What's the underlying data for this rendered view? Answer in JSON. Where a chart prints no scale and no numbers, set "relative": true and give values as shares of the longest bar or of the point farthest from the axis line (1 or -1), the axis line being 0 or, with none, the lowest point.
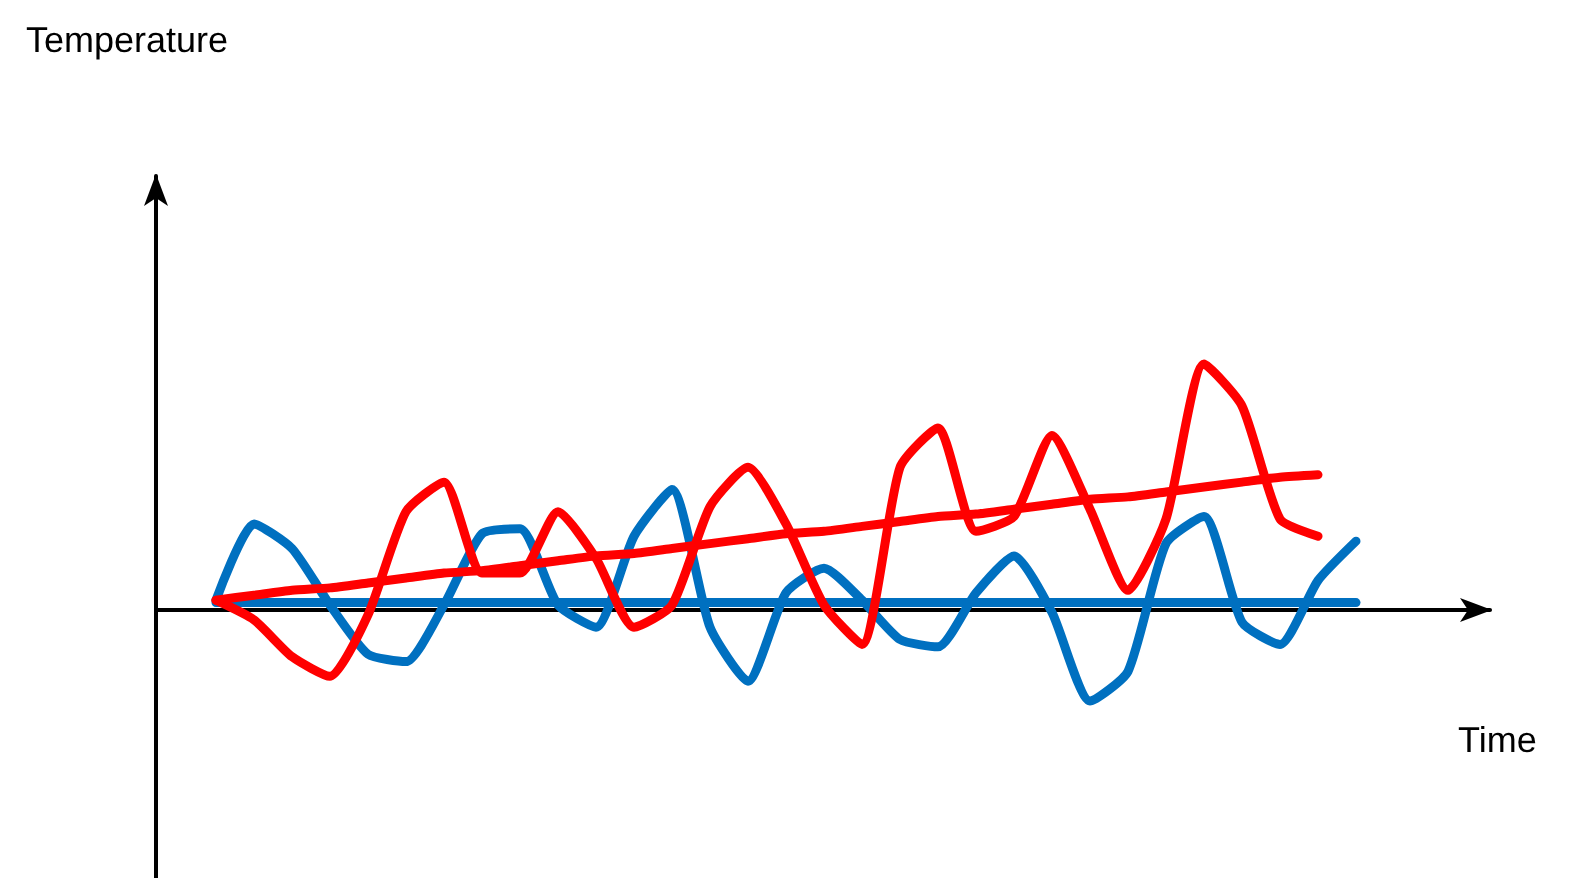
{
  "chart_data": {
    "type": "line",
    "relative": true,
    "xlabel": "Time",
    "annotations": [
      "Temperature"
    ],
    "marker": "none",
    "line_style": "solid",
    "categories": [
      null,
      null,
      null,
      null,
      null,
      null,
      null,
      null,
      null,
      null,
      null,
      null,
      null,
      null,
      null,
      null,
      null,
      null,
      null,
      null,
      null,
      null,
      null,
      null,
      null,
      null,
      null,
      null,
      null,
      null,
      null
    ],
    "series": [
      {
        "color": "#0070c0",
        "values": [
          0.03,
          0.03,
          0.03,
          0.03,
          0.03,
          0.03,
          0.03,
          0.03,
          0.03,
          0.03,
          0.03,
          0.03,
          0.03,
          0.03,
          0.03,
          0.03,
          0.03,
          0.03,
          0.03,
          0.03,
          0.03,
          0.03,
          0.03,
          0.03,
          0.03,
          0.03,
          0.03,
          0.03,
          0.03,
          0.03,
          0.03
        ]
      },
      {
        "color": "#0070c0",
        "values": [
          0.04,
          0.35,
          0.25,
          0.02,
          -0.18,
          -0.21,
          0.02,
          0.31,
          0.33,
          0.02,
          -0.07,
          0.3,
          0.49,
          -0.07,
          -0.29,
          0.07,
          0.17,
          0.04,
          -0.12,
          -0.15,
          0.07,
          0.22,
          -0.01,
          -0.37,
          -0.25,
          0.27,
          0.38,
          -0.05,
          -0.14,
          0.12,
          0.28
        ]
      },
      {
        "color": "#ff0000",
        "values": [
          0.04,
          -0.04,
          -0.19,
          -0.27,
          -0.02,
          0.4,
          0.52,
          0.15,
          0.15,
          0.4,
          0.21,
          -0.07,
          0.02,
          0.42,
          0.58,
          0.35,
          0.02,
          -0.14,
          0.58,
          0.74,
          0.32,
          0.38,
          0.71,
          0.41,
          0.08,
          0.37,
          1.0,
          0.83,
          0.37,
          0.3,
          null
        ]
      },
      {
        "color": "#ff0000",
        "values": [
          0.04,
          0.06,
          0.08,
          0.09,
          0.11,
          0.13,
          0.15,
          0.16,
          0.18,
          0.2,
          0.22,
          0.23,
          0.25,
          0.27,
          0.29,
          0.31,
          0.32,
          0.34,
          0.36,
          0.38,
          0.39,
          0.41,
          0.43,
          0.45,
          0.46,
          0.48,
          0.5,
          0.52,
          0.54,
          0.55,
          null
        ]
      }
    ]
  }
}
